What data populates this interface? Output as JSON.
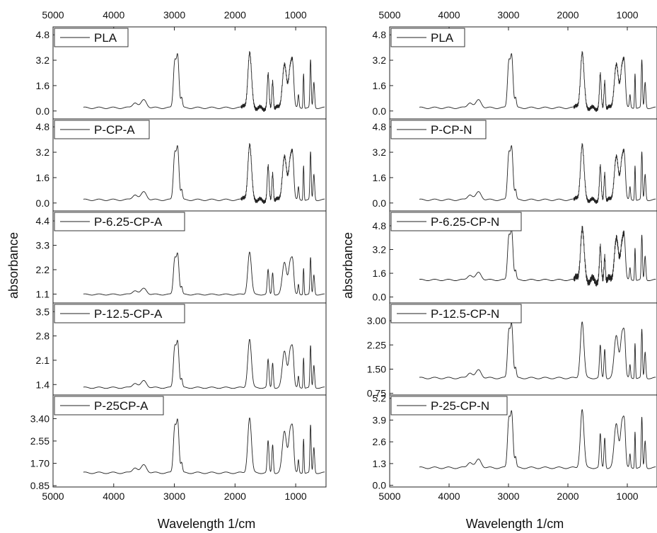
{
  "chart_data": [
    {
      "type": "line",
      "panel": "left",
      "xlabel": "Wavelength 1/cm",
      "ylabel": "absorbance",
      "xlim": [
        5000,
        500
      ],
      "x_ticks": [
        "5000",
        "4000",
        "3000",
        "2000",
        "1000"
      ],
      "series": [
        {
          "name": "PLA",
          "y_ticks": [
            "0.0",
            "1.6",
            "3.2",
            "4.8"
          ],
          "ylim": [
            -0.5,
            5.3
          ],
          "baseline": 0.05,
          "scale": 1.0,
          "noise": 0.25
        },
        {
          "name": "P-CP-A",
          "y_ticks": [
            "0.0",
            "1.6",
            "3.2",
            "4.8"
          ],
          "ylim": [
            -0.5,
            5.3
          ],
          "baseline": 0.05,
          "scale": 1.0,
          "noise": 0.25
        },
        {
          "name": "P-6.25-CP-A",
          "y_ticks": [
            "1.1",
            "2.2",
            "3.3",
            "4.4"
          ],
          "ylim": [
            0.7,
            4.85
          ],
          "baseline": 1.0,
          "scale": 0.55,
          "noise": 0.0
        },
        {
          "name": "P-12.5-CP-A",
          "y_ticks": [
            "1.4",
            "2.1",
            "2.8",
            "3.5"
          ],
          "ylim": [
            1.1,
            3.75
          ],
          "baseline": 1.25,
          "scale": 0.4,
          "noise": 0.0
        },
        {
          "name": "P-25CP-A",
          "y_ticks": [
            "0.85",
            "1.70",
            "2.55",
            "3.40"
          ],
          "ylim": [
            0.8,
            4.3
          ],
          "baseline": 1.25,
          "scale": 0.6,
          "noise": 0.0
        }
      ]
    },
    {
      "type": "line",
      "panel": "right",
      "xlabel": "Wavelength 1/cm",
      "ylabel": "absorbance",
      "xlim": [
        5000,
        500
      ],
      "x_ticks": [
        "5000",
        "4000",
        "3000",
        "2000",
        "1000"
      ],
      "series": [
        {
          "name": "PLA",
          "y_ticks": [
            "0.0",
            "1.6",
            "3.2",
            "4.8"
          ],
          "ylim": [
            -0.5,
            5.3
          ],
          "baseline": 0.05,
          "scale": 1.0,
          "noise": 0.25
        },
        {
          "name": "P-CP-N",
          "y_ticks": [
            "0.0",
            "1.6",
            "3.2",
            "4.8"
          ],
          "ylim": [
            -0.5,
            5.3
          ],
          "baseline": 0.05,
          "scale": 1.0,
          "noise": 0.25
        },
        {
          "name": "P-6.25-CP-N",
          "y_ticks": [
            "0.0",
            "1.6",
            "3.2",
            "4.8"
          ],
          "ylim": [
            -0.4,
            5.8
          ],
          "baseline": 1.0,
          "scale": 1.0,
          "noise": 0.45
        },
        {
          "name": "P-12.5-CP-N",
          "y_ticks": [
            "0.75",
            "1.50",
            "2.25",
            "3.00"
          ],
          "ylim": [
            0.7,
            3.55
          ],
          "baseline": 1.15,
          "scale": 0.5,
          "noise": 0.0
        },
        {
          "name": "P-25-CP-N",
          "y_ticks": [
            "0.0",
            "1.3",
            "2.6",
            "3.9",
            "5.2"
          ],
          "ylim": [
            -0.1,
            5.4
          ],
          "baseline": 0.9,
          "scale": 1.0,
          "noise": 0.0
        }
      ]
    }
  ]
}
